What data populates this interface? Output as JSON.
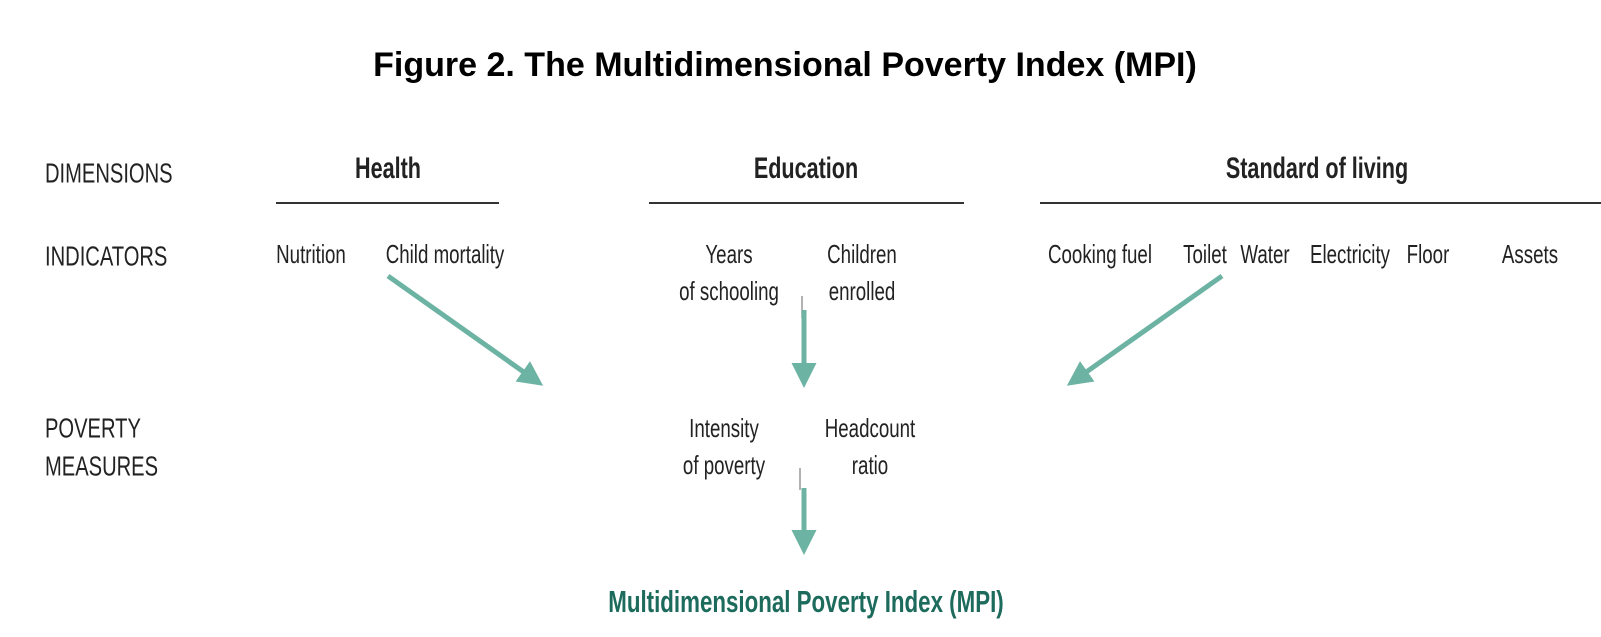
{
  "title": "Figure 2. The Multidimensional Poverty Index (MPI)",
  "row_labels": {
    "dimensions": [
      "DIMENSIONS"
    ],
    "indicators": [
      "INDICATORS"
    ],
    "measures": [
      "POVERTY",
      "MEASURES"
    ]
  },
  "dimensions": [
    {
      "name": "Health",
      "indicators": [
        [
          "Nutrition"
        ],
        [
          "Child mortality"
        ]
      ]
    },
    {
      "name": "Education",
      "indicators": [
        [
          "Years",
          "of schooling"
        ],
        [
          "Children",
          "enrolled"
        ]
      ]
    },
    {
      "name": "Standard of living",
      "indicators": [
        [
          "Cooking fuel"
        ],
        [
          "Toilet"
        ],
        [
          "Water"
        ],
        [
          "Electricity"
        ],
        [
          "Floor"
        ],
        [
          "Assets"
        ]
      ]
    }
  ],
  "measures": [
    [
      "Intensity",
      "of poverty"
    ],
    [
      "Headcount",
      "ratio"
    ]
  ],
  "result": "Multidimensional Poverty Index (MPI)"
}
